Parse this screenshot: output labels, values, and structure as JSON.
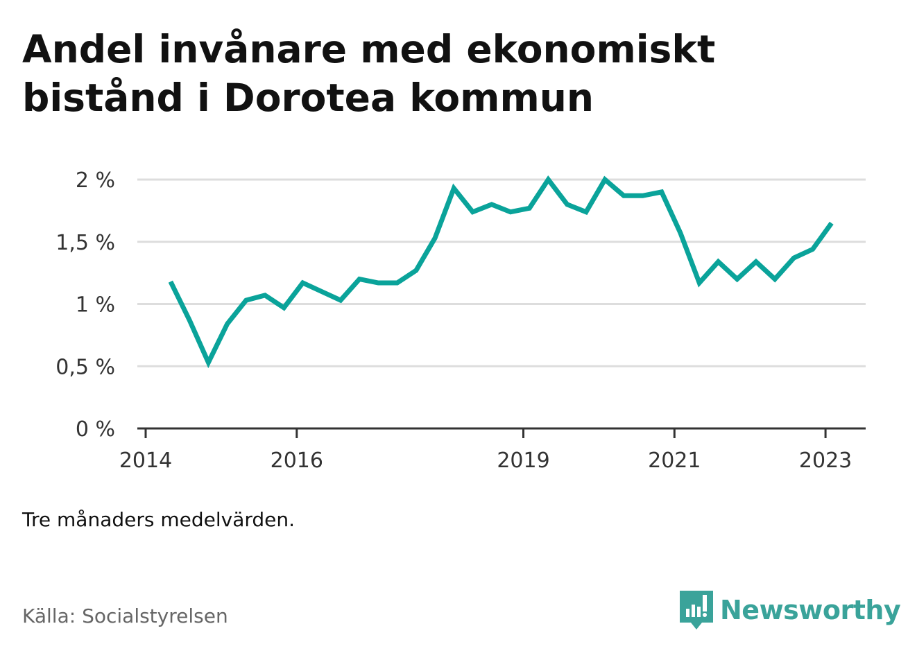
{
  "header": {
    "title": "Andel invånare med ekonomiskt bistånd i Dorotea kommun"
  },
  "footer": {
    "note": "Tre månaders medelvärden.",
    "source": "Källa: Socialstyrelsen",
    "brand": "Newsworthy"
  },
  "colors": {
    "line": "#0aa39a",
    "brand": "#3aa39a",
    "grid": "#dddddd",
    "axis": "#333333"
  },
  "chart_data": {
    "type": "line",
    "title": "Andel invånare med ekonomiskt bistånd i Dorotea kommun",
    "xlabel": "",
    "ylabel": "",
    "ylim": [
      0,
      2
    ],
    "xlim": [
      2014.0,
      2023.25
    ],
    "y_ticks": [
      0,
      0.5,
      1,
      1.5,
      2
    ],
    "y_tick_labels": [
      "0 %",
      "0,5 %",
      "1 %",
      "1,5 %",
      "2 %"
    ],
    "x_ticks": [
      2014,
      2016,
      2019,
      2021,
      2023
    ],
    "x_tick_labels": [
      "2014",
      "2016",
      "2019",
      "2021",
      "2023"
    ],
    "grid": true,
    "series": [
      {
        "x": [
          2014.33,
          2014.58,
          2014.83,
          2015.08,
          2015.33,
          2015.58,
          2015.83,
          2016.08,
          2016.33,
          2016.58,
          2016.83,
          2017.08,
          2017.33,
          2017.58,
          2017.83,
          2018.08,
          2018.33,
          2018.58,
          2018.83,
          2019.08,
          2019.33,
          2019.58,
          2019.83,
          2020.08,
          2020.33,
          2020.58,
          2020.83,
          2021.08,
          2021.33,
          2021.58,
          2021.83,
          2022.08,
          2022.33,
          2022.58,
          2022.83,
          2023.08
        ],
        "values": [
          1.18,
          0.87,
          0.53,
          0.84,
          1.03,
          1.07,
          0.97,
          1.17,
          1.1,
          1.03,
          1.2,
          1.17,
          1.17,
          1.27,
          1.53,
          1.93,
          1.74,
          1.8,
          1.74,
          1.77,
          2.0,
          1.8,
          1.74,
          2.0,
          1.87,
          1.87,
          1.9,
          1.57,
          1.17,
          1.34,
          1.2,
          1.34,
          1.2,
          1.37,
          1.44,
          1.65
        ]
      }
    ]
  }
}
